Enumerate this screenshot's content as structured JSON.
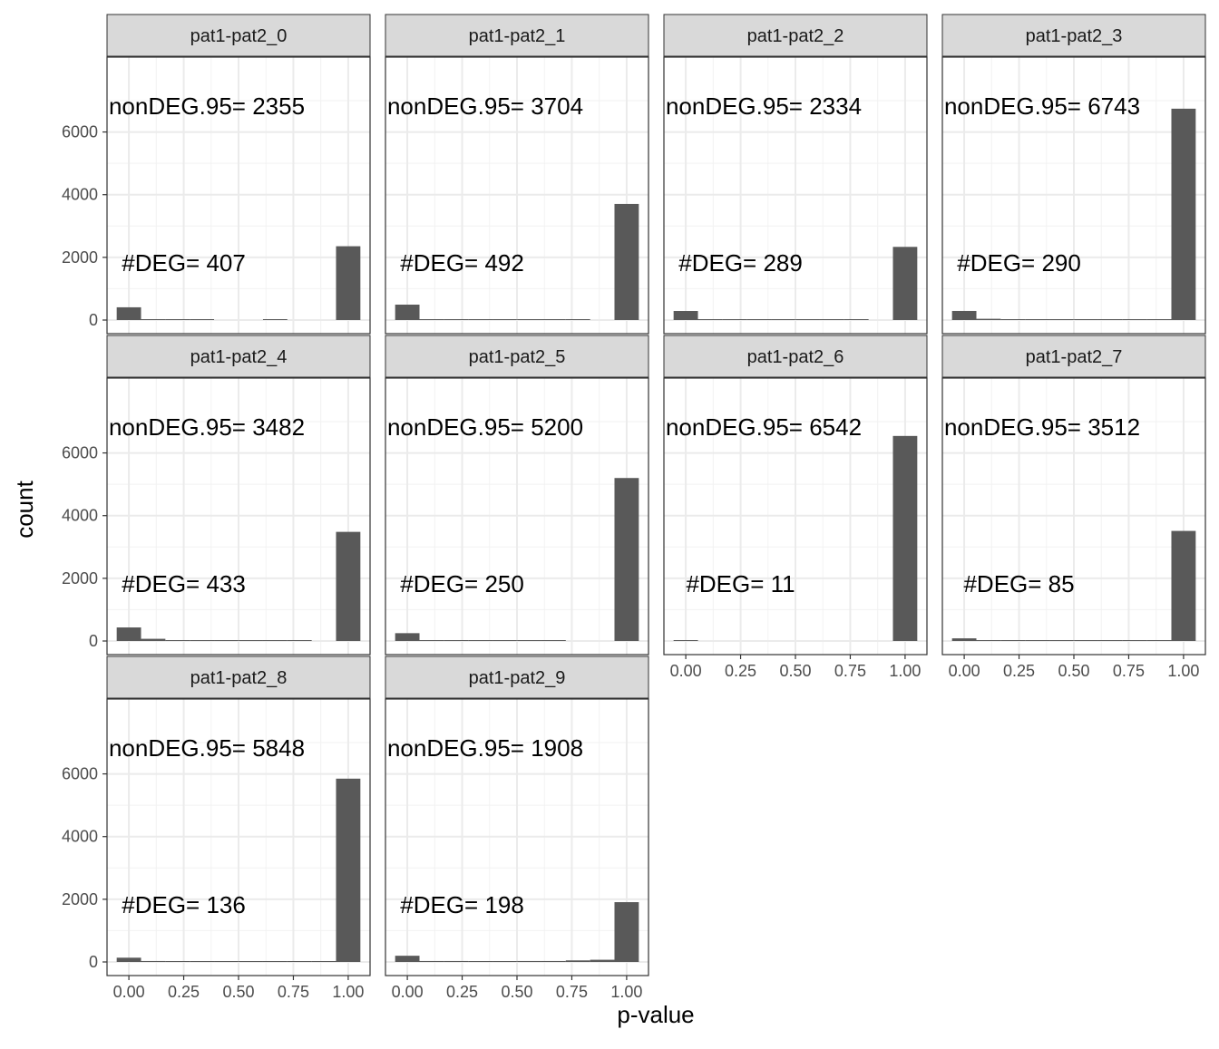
{
  "chart_data": {
    "type": "bar",
    "chart_kind": "faceted histogram",
    "xlabel": "p-value",
    "ylabel": "count",
    "ylim": [
      0,
      7000
    ],
    "xlim": [
      -0.05,
      1.05
    ],
    "x_ticks": [
      "0.00",
      "0.25",
      "0.50",
      "0.75",
      "1.00"
    ],
    "y_ticks": [
      "0",
      "2000",
      "4000",
      "6000"
    ],
    "grid": true,
    "bar_color": "#595959",
    "strip_color": "#d9d9d9",
    "bin_centers": [
      0.0,
      0.111,
      0.222,
      0.333,
      0.444,
      0.556,
      0.667,
      0.778,
      0.889,
      1.0
    ],
    "panels": [
      {
        "title": "pat1-pat2_0",
        "nondeg_label": "nonDEG.95= 2355",
        "deg_label": "#DEG= 407",
        "values": [
          407,
          20,
          15,
          10,
          0,
          0,
          15,
          0,
          0,
          2355
        ]
      },
      {
        "title": "pat1-pat2_1",
        "nondeg_label": "nonDEG.95= 3704",
        "deg_label": "#DEG= 492",
        "values": [
          492,
          15,
          10,
          10,
          10,
          10,
          10,
          10,
          0,
          3704
        ]
      },
      {
        "title": "pat1-pat2_2",
        "nondeg_label": "nonDEG.95= 2334",
        "deg_label": "#DEG= 289",
        "values": [
          289,
          10,
          10,
          10,
          10,
          10,
          10,
          10,
          0,
          2334
        ]
      },
      {
        "title": "pat1-pat2_3",
        "nondeg_label": "nonDEG.95= 6743",
        "deg_label": "#DEG= 290",
        "values": [
          290,
          40,
          10,
          10,
          10,
          10,
          10,
          10,
          10,
          6743
        ]
      },
      {
        "title": "pat1-pat2_4",
        "nondeg_label": "nonDEG.95= 3482",
        "deg_label": "#DEG= 433",
        "values": [
          433,
          70,
          15,
          10,
          10,
          10,
          10,
          10,
          0,
          3482
        ]
      },
      {
        "title": "pat1-pat2_5",
        "nondeg_label": "nonDEG.95= 5200",
        "deg_label": "#DEG= 250",
        "values": [
          250,
          15,
          10,
          10,
          10,
          10,
          10,
          0,
          0,
          5200
        ]
      },
      {
        "title": "pat1-pat2_6",
        "nondeg_label": "nonDEG.95= 6542",
        "deg_label": "#DEG= 11",
        "values": [
          11,
          0,
          0,
          0,
          0,
          0,
          0,
          0,
          0,
          6542
        ]
      },
      {
        "title": "pat1-pat2_7",
        "nondeg_label": "nonDEG.95= 3512",
        "deg_label": "#DEG= 85",
        "values": [
          85,
          10,
          10,
          10,
          10,
          10,
          10,
          10,
          10,
          3512
        ]
      },
      {
        "title": "pat1-pat2_8",
        "nondeg_label": "nonDEG.95= 5848",
        "deg_label": "#DEG= 136",
        "values": [
          136,
          30,
          10,
          10,
          10,
          10,
          10,
          10,
          10,
          5848
        ]
      },
      {
        "title": "pat1-pat2_9",
        "nondeg_label": "nonDEG.95= 1908",
        "deg_label": "#DEG= 198",
        "values": [
          198,
          30,
          30,
          15,
          15,
          30,
          30,
          50,
          70,
          1908
        ]
      }
    ]
  }
}
